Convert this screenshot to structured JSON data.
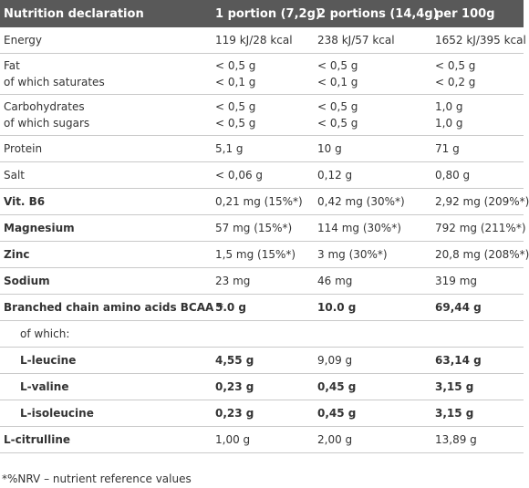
{
  "header": {
    "col0": "Nutrition declaration",
    "col1": "1 portion (7,2g)",
    "col2": "2 portions (14,4g)",
    "col3": "per 100g"
  },
  "rows": {
    "energy": {
      "label": "Energy",
      "c1": "119 kJ/28 kcal",
      "c2": "238 kJ/57 kcal",
      "c3": "1652 kJ/395 kcal"
    },
    "fat": {
      "label": "Fat",
      "label2": "of which saturates",
      "c1": "< 0,5 g",
      "c1b": "< 0,1 g",
      "c2": "< 0,5 g",
      "c2b": "< 0,1 g",
      "c3": "< 0,5 g",
      "c3b": "< 0,2 g"
    },
    "carbs": {
      "label": "Carbohydrates",
      "label2": "of which sugars",
      "c1": "< 0,5 g",
      "c1b": "< 0,5 g",
      "c2": "< 0,5 g",
      "c2b": "< 0,5 g",
      "c3": "1,0 g",
      "c3b": "1,0 g"
    },
    "protein": {
      "label": "Protein",
      "c1": "5,1 g",
      "c2": "10 g",
      "c3": "71 g"
    },
    "salt": {
      "label": "Salt",
      "c1": "< 0,06 g",
      "c2": "0,12 g",
      "c3": "0,80 g"
    },
    "vitb6": {
      "label": "Vit. B6",
      "c1": "0,21 mg (15%*)",
      "c2": "0,42 mg (30%*)",
      "c3": "2,92 mg (209%*)"
    },
    "magnesium": {
      "label": "Magnesium",
      "c1": "57 mg (15%*)",
      "c2": "114 mg (30%*)",
      "c3": "792 mg (211%*)"
    },
    "zinc": {
      "label": "Zinc",
      "c1": "1,5 mg (15%*)",
      "c2": "3 mg (30%*)",
      "c3": "20,8 mg (208%*)"
    },
    "sodium": {
      "label": "Sodium",
      "c1": "23 mg",
      "c2": "46 mg",
      "c3": "319 mg"
    },
    "bcaa": {
      "label": "Branched chain amino acids BCAA *",
      "c1": "5.0 g",
      "c2": "10.0 g",
      "c3": "69,44 g"
    },
    "ofwhich": {
      "label": "of which:",
      "c1": "",
      "c2": "",
      "c3": ""
    },
    "leucine": {
      "label": "L-leucine",
      "c1": "4,55 g",
      "c2": "9,09 g",
      "c3": "63,14 g"
    },
    "valine": {
      "label": "L-valine",
      "c1": "0,23 g",
      "c2": "0,45 g",
      "c3": "3,15 g"
    },
    "isoleucine": {
      "label": "L-isoleucine",
      "c1": "0,23 g",
      "c2": "0,45 g",
      "c3": "3,15 g"
    },
    "citrulline": {
      "label": "L-citrulline",
      "c1": "1,00 g",
      "c2": "2,00 g",
      "c3": "13,89 g"
    }
  },
  "footnote": "*%NRV – nutrient reference values"
}
